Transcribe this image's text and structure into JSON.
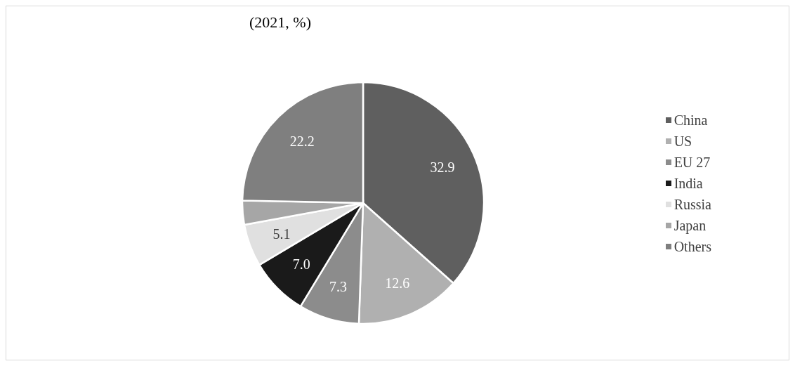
{
  "chart_data": {
    "type": "pie",
    "title": "(2021, %)",
    "categories": [
      "China",
      "US",
      "EU 27",
      "India",
      "Russia",
      "Japan",
      "Others"
    ],
    "values": [
      32.9,
      12.6,
      7.3,
      7.0,
      5.1,
      2.9,
      22.2
    ],
    "value_labels": [
      "32.9",
      "12.6",
      "7.3",
      "7.0",
      "5.1",
      null,
      "22.2"
    ],
    "colors": [
      "#5f5f5f",
      "#b0b0b0",
      "#8c8c8c",
      "#1a1a1a",
      "#e0e0e0",
      "#a6a6a6",
      "#7f7f7f"
    ],
    "legend": "right"
  }
}
